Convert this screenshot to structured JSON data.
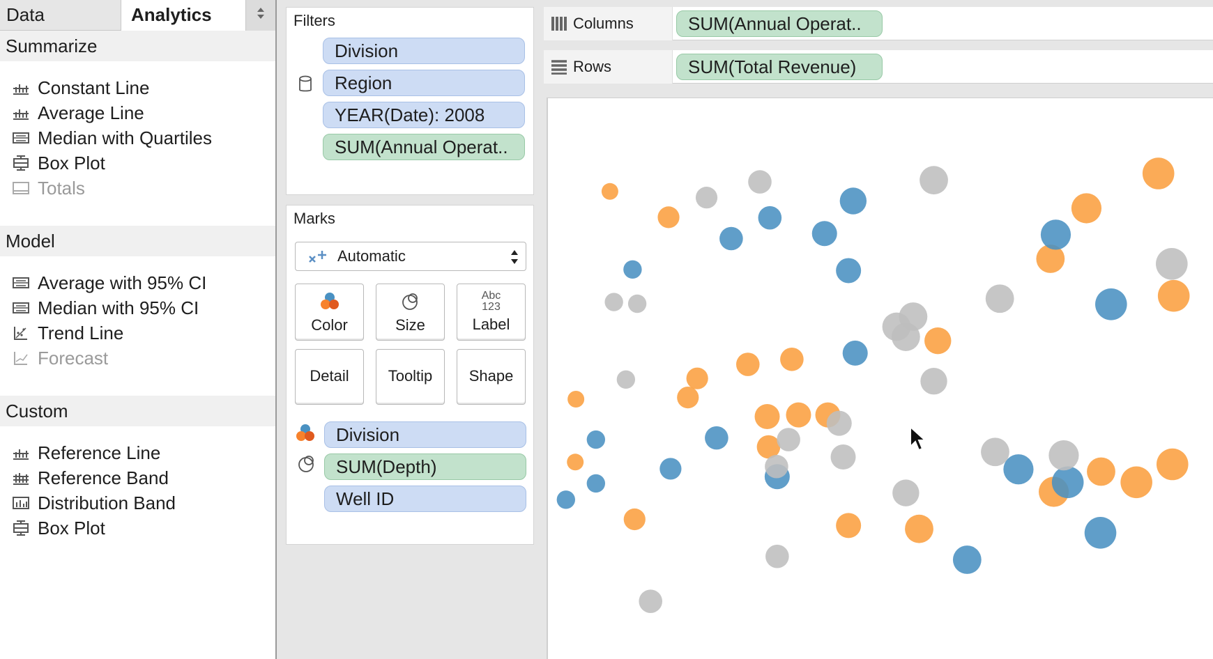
{
  "tabs": {
    "data_label": "Data",
    "analytics_label": "Analytics"
  },
  "analytics": {
    "summarize": {
      "header": "Summarize",
      "items": [
        {
          "label": "Constant Line",
          "icon": "constant-line-icon",
          "enabled": true
        },
        {
          "label": "Average Line",
          "icon": "average-line-icon",
          "enabled": true
        },
        {
          "label": "Median with Quartiles",
          "icon": "median-quartiles-icon",
          "enabled": true
        },
        {
          "label": "Box Plot",
          "icon": "box-plot-icon",
          "enabled": true
        },
        {
          "label": "Totals",
          "icon": "totals-icon",
          "enabled": false
        }
      ]
    },
    "model": {
      "header": "Model",
      "items": [
        {
          "label": "Average with 95% CI",
          "icon": "average-ci-icon",
          "enabled": true
        },
        {
          "label": "Median with 95% CI",
          "icon": "median-ci-icon",
          "enabled": true
        },
        {
          "label": "Trend Line",
          "icon": "trend-line-icon",
          "enabled": true
        },
        {
          "label": "Forecast",
          "icon": "forecast-icon",
          "enabled": false
        }
      ]
    },
    "custom": {
      "header": "Custom",
      "items": [
        {
          "label": "Reference Line",
          "icon": "reference-line-icon",
          "enabled": true
        },
        {
          "label": "Reference Band",
          "icon": "reference-band-icon",
          "enabled": true
        },
        {
          "label": "Distribution Band",
          "icon": "distribution-band-icon",
          "enabled": true
        },
        {
          "label": "Box Plot",
          "icon": "box-plot-icon",
          "enabled": true
        }
      ]
    }
  },
  "filters": {
    "title": "Filters",
    "pills": [
      {
        "label": "Division",
        "kind": "dimension"
      },
      {
        "label": "Region",
        "kind": "dimension"
      },
      {
        "label": "YEAR(Date): 2008",
        "kind": "dimension"
      },
      {
        "label": "SUM(Annual Operat..",
        "kind": "measure"
      }
    ]
  },
  "marks": {
    "title": "Marks",
    "mark_type": "Automatic",
    "buttons": {
      "color": "Color",
      "size": "Size",
      "label": "Label",
      "label_icon_top": "Abc",
      "label_icon_bottom": "123",
      "detail": "Detail",
      "tooltip": "Tooltip",
      "shape": "Shape"
    },
    "encodings": [
      {
        "label": "Division",
        "kind": "dimension",
        "encoding": "color"
      },
      {
        "label": "SUM(Depth)",
        "kind": "measure",
        "encoding": "size"
      },
      {
        "label": "Well ID",
        "kind": "dimension",
        "encoding": "detail"
      }
    ]
  },
  "shelves": {
    "columns_label": "Columns",
    "columns_pill": "SUM(Annual Operat..",
    "rows_label": "Rows",
    "rows_pill": "SUM(Total Revenue)"
  },
  "colors": {
    "dimension_pill": "#cddcf4",
    "measure_pill": "#c2e2cc",
    "blue_mark": "#4a91c2",
    "orange_mark": "#fa9f40",
    "gray_mark": "#bebebe"
  },
  "chart_data": {
    "type": "scatter",
    "title": "",
    "xlabel": "",
    "ylabel": "",
    "xlim": [
      0,
      100
    ],
    "ylim": [
      0,
      100
    ],
    "grid": false,
    "legend": "none",
    "series": [
      {
        "color": "#fa9f40",
        "points": [
          {
            "x": 9.3,
            "y": 83.4,
            "size": 1.0
          },
          {
            "x": 18.1,
            "y": 78.8,
            "size": 1.3
          },
          {
            "x": 80.8,
            "y": 80.4,
            "size": 1.8
          },
          {
            "x": 91.6,
            "y": 86.6,
            "size": 1.9
          },
          {
            "x": 75.4,
            "y": 71.4,
            "size": 1.7
          },
          {
            "x": 93.9,
            "y": 64.8,
            "size": 1.9
          },
          {
            "x": 58.5,
            "y": 56.8,
            "size": 1.6
          },
          {
            "x": 30.0,
            "y": 52.6,
            "size": 1.4
          },
          {
            "x": 36.6,
            "y": 53.5,
            "size": 1.4
          },
          {
            "x": 22.4,
            "y": 50.1,
            "size": 1.3
          },
          {
            "x": 4.2,
            "y": 46.4,
            "size": 1.0
          },
          {
            "x": 21.0,
            "y": 46.7,
            "size": 1.3
          },
          {
            "x": 32.9,
            "y": 43.3,
            "size": 1.5
          },
          {
            "x": 37.6,
            "y": 43.6,
            "size": 1.5
          },
          {
            "x": 42.0,
            "y": 43.6,
            "size": 1.5
          },
          {
            "x": 33.1,
            "y": 37.9,
            "size": 1.4
          },
          {
            "x": 75.9,
            "y": 29.9,
            "size": 1.8
          },
          {
            "x": 83.0,
            "y": 33.5,
            "size": 1.7
          },
          {
            "x": 88.3,
            "y": 31.6,
            "size": 1.9
          },
          {
            "x": 93.7,
            "y": 34.8,
            "size": 1.9
          },
          {
            "x": 4.1,
            "y": 35.2,
            "size": 1.0
          },
          {
            "x": 13.0,
            "y": 25.0,
            "size": 1.3
          },
          {
            "x": 45.1,
            "y": 23.9,
            "size": 1.5
          },
          {
            "x": 55.7,
            "y": 23.3,
            "size": 1.7
          }
        ]
      },
      {
        "color": "#4a91c2",
        "points": [
          {
            "x": 45.8,
            "y": 81.7,
            "size": 1.6
          },
          {
            "x": 33.3,
            "y": 78.7,
            "size": 1.4
          },
          {
            "x": 27.5,
            "y": 75.0,
            "size": 1.4
          },
          {
            "x": 41.5,
            "y": 75.9,
            "size": 1.5
          },
          {
            "x": 45.1,
            "y": 69.3,
            "size": 1.5
          },
          {
            "x": 12.7,
            "y": 69.5,
            "size": 1.1
          },
          {
            "x": 76.2,
            "y": 75.7,
            "size": 1.8
          },
          {
            "x": 84.5,
            "y": 63.3,
            "size": 1.9
          },
          {
            "x": 46.1,
            "y": 54.6,
            "size": 1.5
          },
          {
            "x": 25.3,
            "y": 39.5,
            "size": 1.4
          },
          {
            "x": 7.2,
            "y": 39.2,
            "size": 1.1
          },
          {
            "x": 18.4,
            "y": 34.0,
            "size": 1.3
          },
          {
            "x": 7.2,
            "y": 31.4,
            "size": 1.1
          },
          {
            "x": 2.7,
            "y": 28.5,
            "size": 1.1
          },
          {
            "x": 34.4,
            "y": 32.6,
            "size": 1.5
          },
          {
            "x": 70.6,
            "y": 33.9,
            "size": 1.8
          },
          {
            "x": 78.0,
            "y": 31.6,
            "size": 1.9
          },
          {
            "x": 82.9,
            "y": 22.6,
            "size": 1.9
          },
          {
            "x": 62.9,
            "y": 17.8,
            "size": 1.7
          }
        ]
      },
      {
        "color": "#bebebe",
        "points": [
          {
            "x": 31.8,
            "y": 85.1,
            "size": 1.4
          },
          {
            "x": 23.8,
            "y": 82.3,
            "size": 1.3
          },
          {
            "x": 57.9,
            "y": 85.4,
            "size": 1.7
          },
          {
            "x": 93.6,
            "y": 70.5,
            "size": 1.9
          },
          {
            "x": 67.8,
            "y": 64.3,
            "size": 1.7
          },
          {
            "x": 54.8,
            "y": 61.1,
            "size": 1.7
          },
          {
            "x": 52.3,
            "y": 59.3,
            "size": 1.7
          },
          {
            "x": 53.7,
            "y": 57.5,
            "size": 1.7
          },
          {
            "x": 9.9,
            "y": 63.7,
            "size": 1.1
          },
          {
            "x": 13.4,
            "y": 63.4,
            "size": 1.1
          },
          {
            "x": 57.9,
            "y": 49.6,
            "size": 1.6
          },
          {
            "x": 11.7,
            "y": 49.9,
            "size": 1.1
          },
          {
            "x": 43.7,
            "y": 42.1,
            "size": 1.5
          },
          {
            "x": 36.1,
            "y": 39.2,
            "size": 1.4
          },
          {
            "x": 44.3,
            "y": 36.1,
            "size": 1.5
          },
          {
            "x": 34.3,
            "y": 34.4,
            "size": 1.4
          },
          {
            "x": 67.1,
            "y": 37.0,
            "size": 1.7
          },
          {
            "x": 77.4,
            "y": 36.4,
            "size": 1.8
          },
          {
            "x": 53.7,
            "y": 29.7,
            "size": 1.6
          },
          {
            "x": 34.4,
            "y": 18.4,
            "size": 1.4
          },
          {
            "x": 15.4,
            "y": 10.4,
            "size": 1.4
          }
        ]
      }
    ]
  }
}
